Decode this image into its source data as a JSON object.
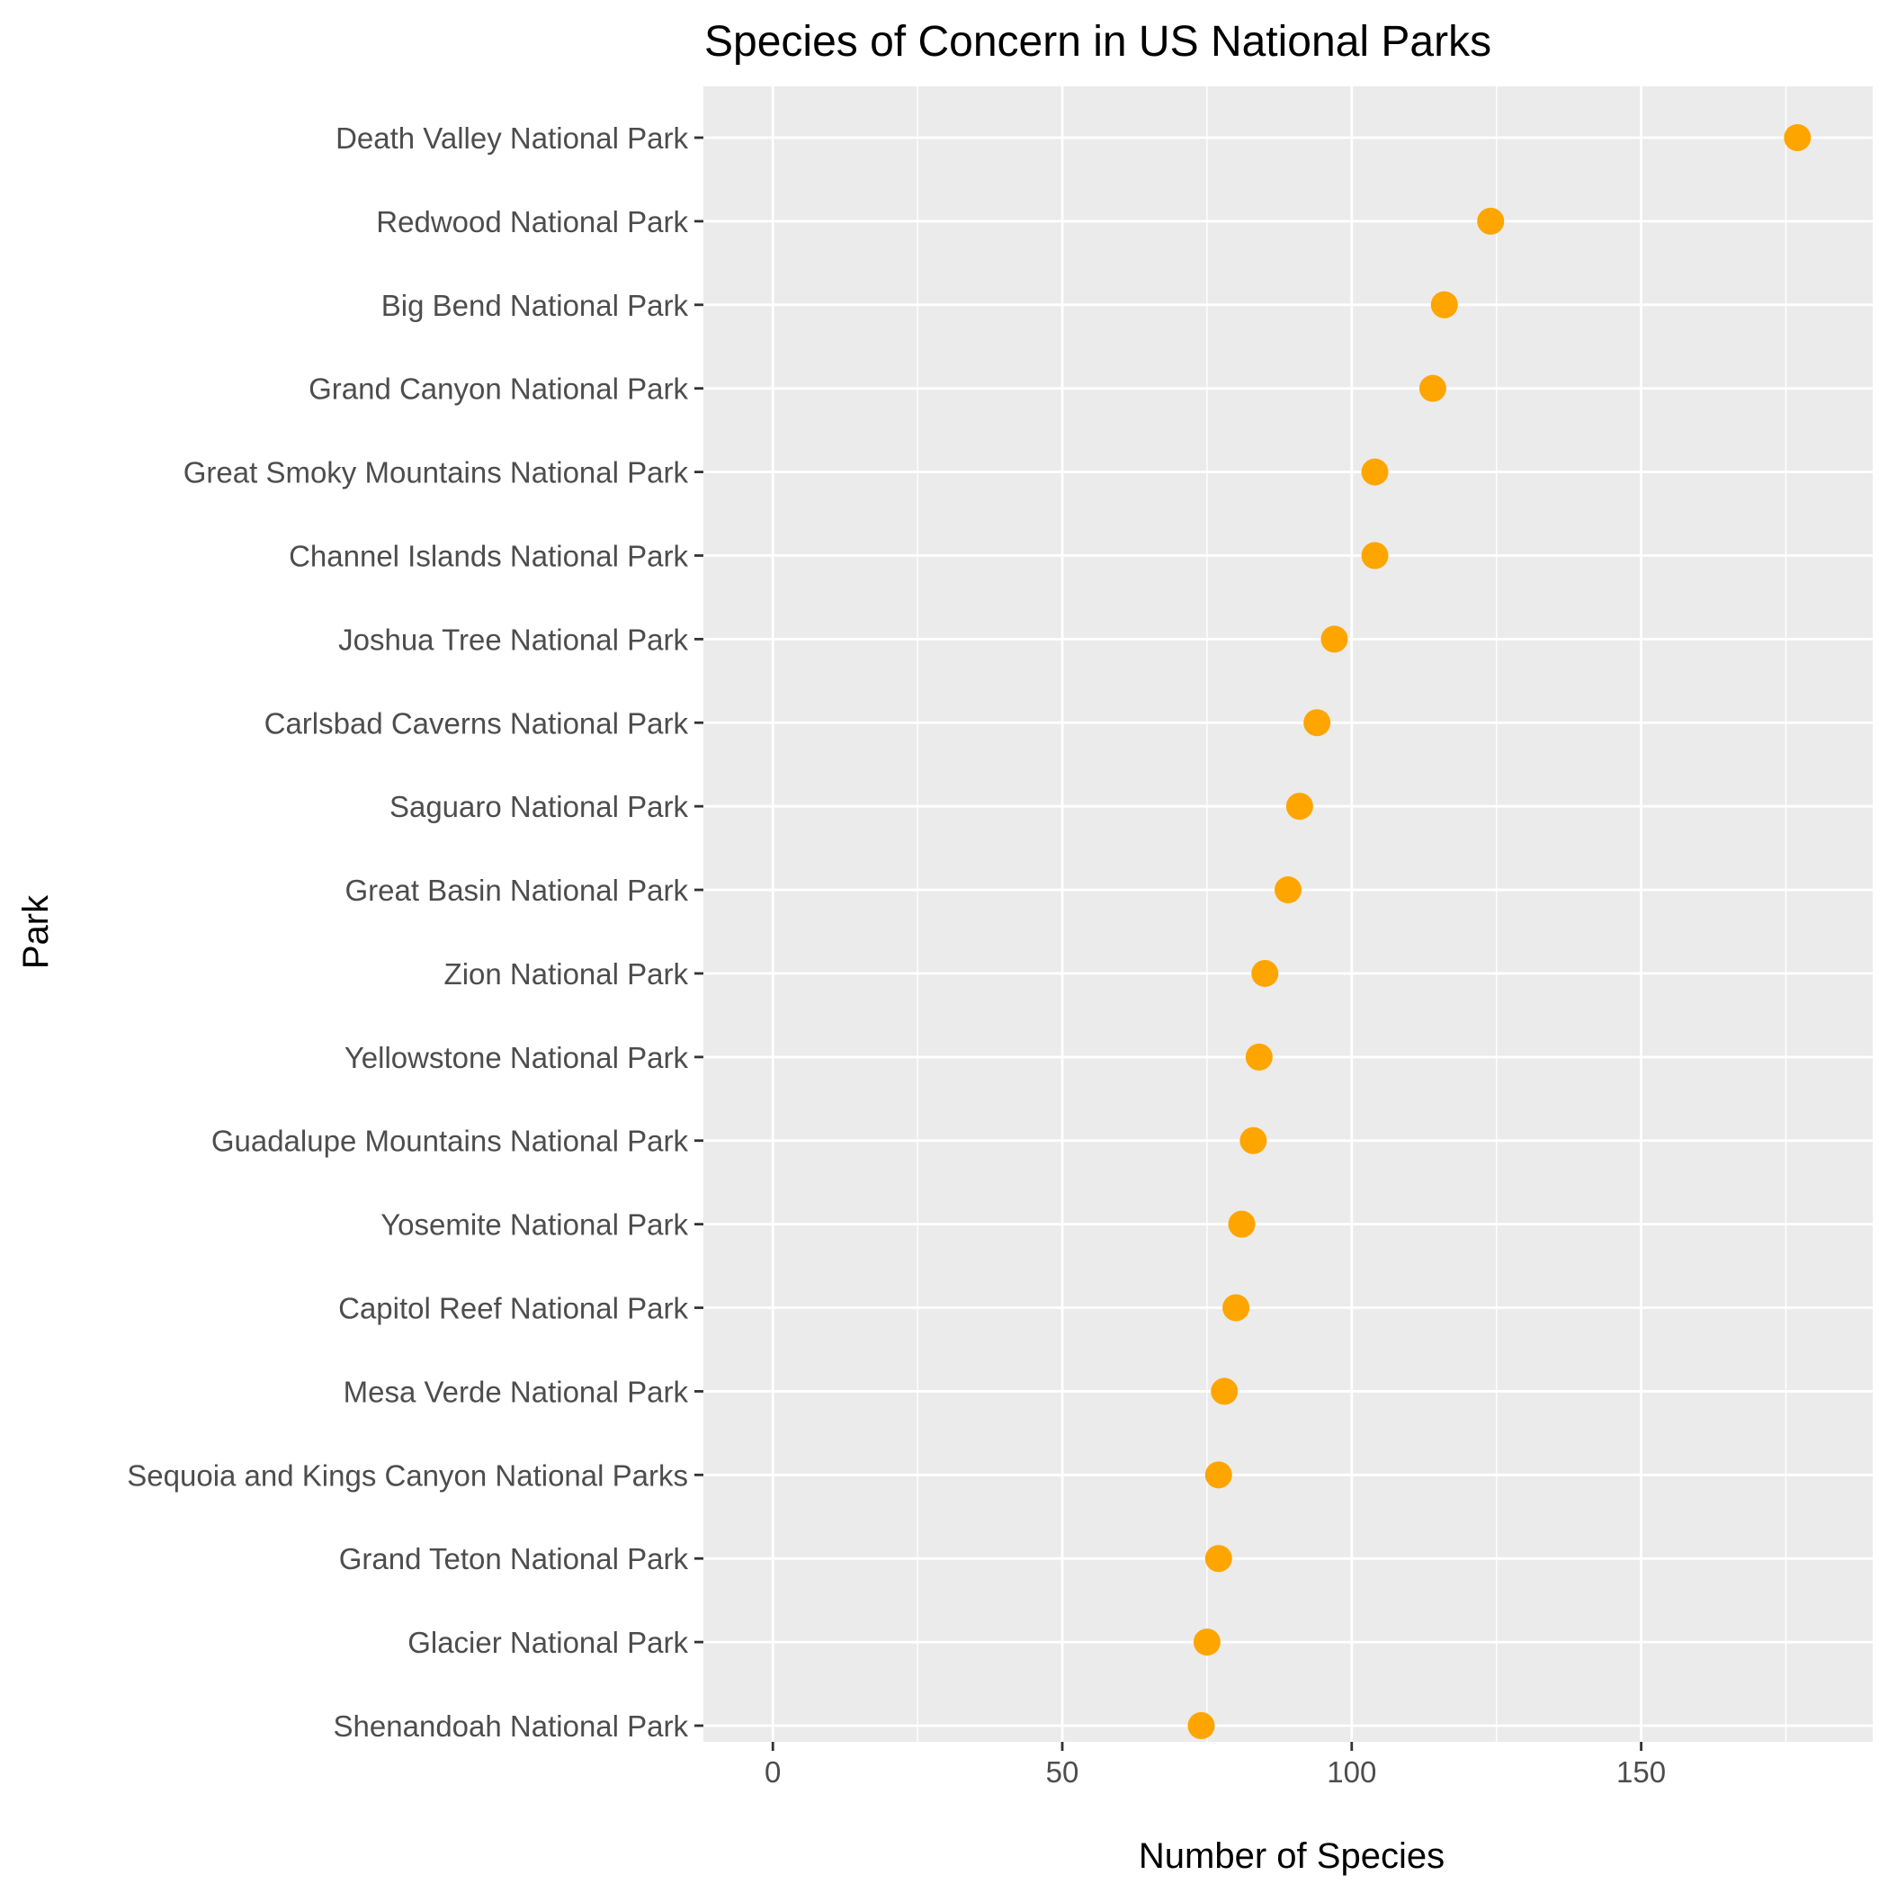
{
  "chart_data": {
    "type": "scatter",
    "title": "Species of Concern in US National Parks",
    "xlabel": "Number of Species",
    "ylabel": "Park",
    "xlim": [
      -12,
      190
    ],
    "x_ticks": [
      0,
      50,
      100,
      150
    ],
    "x_minor_ticks": [
      25,
      75,
      125,
      175
    ],
    "grid": true,
    "legend": "none",
    "point_color": "#FFA500",
    "panel_background": "#EBEBEB",
    "grid_color": "#FFFFFF",
    "categories": [
      "Death Valley National Park",
      "Redwood National Park",
      "Big Bend National Park",
      "Grand Canyon National Park",
      "Great Smoky Mountains National Park",
      "Channel Islands National Park",
      "Joshua Tree National Park",
      "Carlsbad Caverns National Park",
      "Saguaro National Park",
      "Great Basin National Park",
      "Zion National Park",
      "Yellowstone National Park",
      "Guadalupe Mountains National Park",
      "Yosemite National Park",
      "Capitol Reef National Park",
      "Mesa Verde National Park",
      "Sequoia and Kings Canyon National Parks",
      "Grand Teton National Park",
      "Glacier National Park",
      "Shenandoah National Park"
    ],
    "values": [
      177,
      124,
      116,
      114,
      104,
      104,
      97,
      94,
      91,
      89,
      85,
      84,
      83,
      81,
      80,
      78,
      77,
      77,
      75,
      74
    ]
  }
}
